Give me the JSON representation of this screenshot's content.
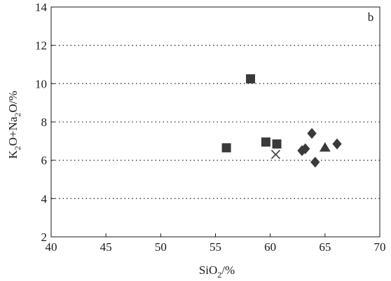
{
  "chart_data": {
    "type": "scatter",
    "panel_label": "b",
    "xlabel": {
      "base": "SiO",
      "sub": "2",
      "unit": "/%"
    },
    "ylabel": {
      "parts": [
        "K",
        "2",
        "O+Na",
        "2",
        "O/%"
      ]
    },
    "xlim": [
      40,
      70
    ],
    "ylim": [
      2,
      14
    ],
    "xticks": [
      40,
      45,
      50,
      55,
      60,
      65,
      70
    ],
    "yticks": [
      2,
      4,
      6,
      8,
      10,
      12,
      14
    ],
    "grid": "horizontal dotted",
    "series": [
      {
        "marker": "square",
        "points": [
          [
            58.2,
            10.25
          ],
          [
            56.0,
            6.65
          ],
          [
            59.6,
            6.95
          ],
          [
            60.6,
            6.85
          ]
        ]
      },
      {
        "marker": "diamond",
        "points": [
          [
            63.8,
            7.4
          ],
          [
            63.2,
            6.6
          ],
          [
            62.9,
            6.5
          ],
          [
            64.1,
            5.9
          ],
          [
            66.1,
            6.85
          ]
        ]
      },
      {
        "marker": "triangle",
        "points": [
          [
            65.0,
            6.65
          ]
        ]
      },
      {
        "marker": "cross",
        "points": [
          [
            60.5,
            6.3
          ]
        ]
      }
    ],
    "marker_color": "#3a3a3a"
  }
}
